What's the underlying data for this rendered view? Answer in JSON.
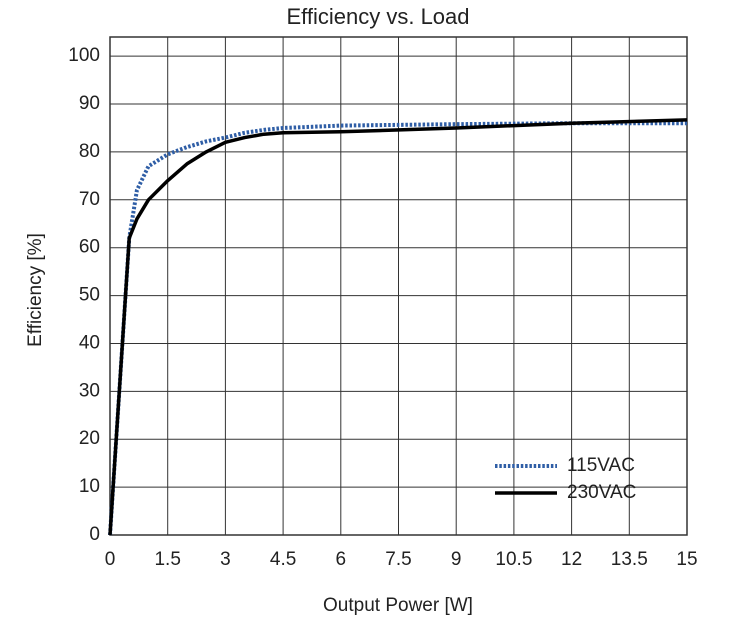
{
  "chart_data": {
    "type": "line",
    "title": "Efficiency vs. Load",
    "x_label": "Output Power [W]",
    "y_label": "Efficiency [%]",
    "x": [
      0,
      0.5,
      0.7,
      1,
      1.5,
      2,
      2.5,
      3,
      3.5,
      4,
      4.5,
      6,
      9,
      12,
      15
    ],
    "series": [
      {
        "name": "115VAC",
        "color": "#2f5ea6",
        "style": "dotted",
        "values": [
          0,
          62,
          72,
          77,
          79.5,
          81,
          82.2,
          83,
          84,
          84.6,
          85,
          85.5,
          85.8,
          86,
          86
        ]
      },
      {
        "name": "230VAC",
        "color": "#000000",
        "style": "solid",
        "values": [
          0,
          62,
          66,
          70,
          74,
          77.5,
          80,
          82,
          83,
          83.7,
          84,
          84.2,
          85,
          86,
          86.7
        ]
      }
    ],
    "xlim": [
      0,
      15
    ],
    "xticks": [
      0,
      1.5,
      3,
      4.5,
      6,
      7.5,
      9,
      10.5,
      12,
      13.5,
      15
    ],
    "ylim": [
      0,
      104
    ],
    "yticks": [
      0,
      10,
      20,
      30,
      40,
      50,
      60,
      70,
      80,
      90,
      100
    ],
    "grid": true,
    "legend": "lower right"
  }
}
